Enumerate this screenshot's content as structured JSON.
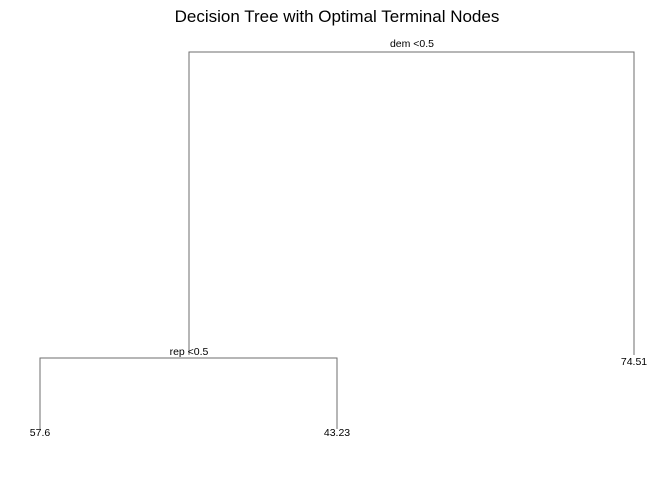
{
  "title": "Decision Tree with Optimal Terminal Nodes",
  "root": {
    "split_label": "dem <0.5"
  },
  "inner_node": {
    "split_label": "rep <0.5"
  },
  "leaves": {
    "dem_false": "74.51",
    "rep_true": "57.6",
    "rep_false": "43.23"
  },
  "colors": {
    "branch": "#6e6e6e",
    "text": "#000000",
    "background": "#ffffff"
  }
}
